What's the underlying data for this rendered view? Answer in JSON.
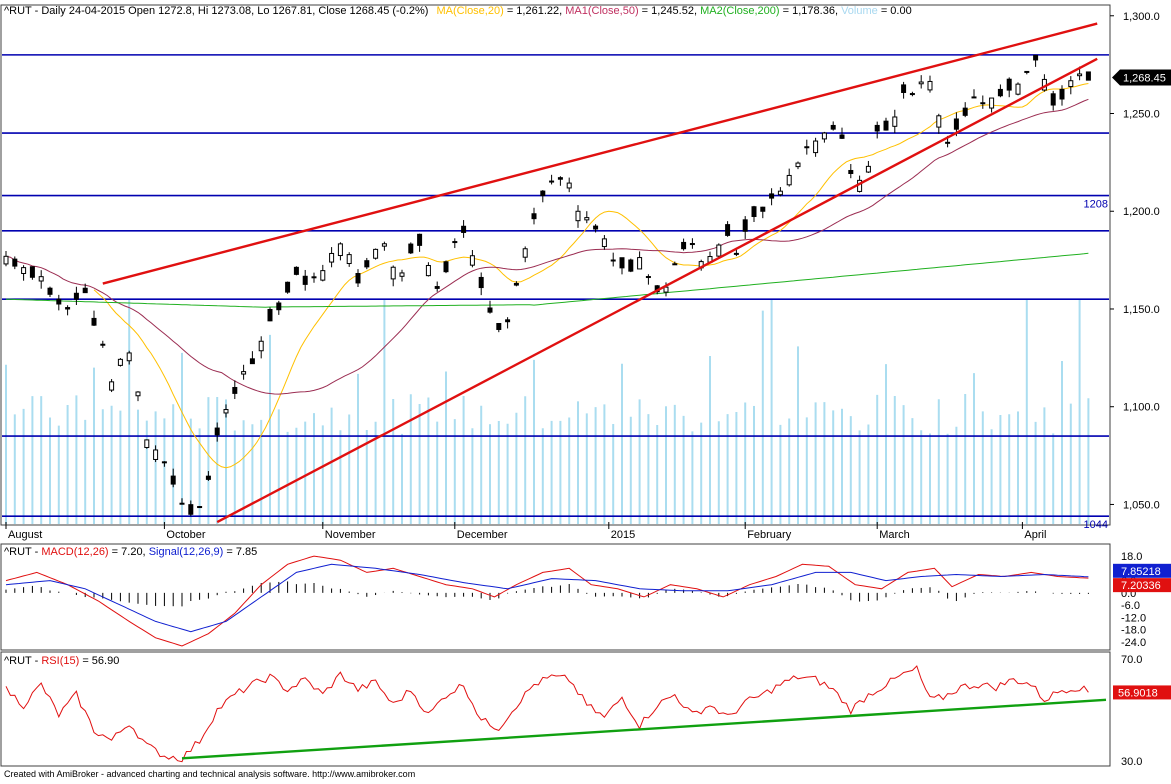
{
  "header": {
    "symbol": "^RUT - Daily 24-04-2015 Open 1272.8, Hi 1273.08, Lo 1267.81, Close 1268.45 (-0.2%)",
    "ma_label": "MA(Close,20)",
    "ma_value": " = 1,261.22, ",
    "ma1_label": "MA1(Close,50)",
    "ma1_value": " = 1,245.52, ",
    "ma2_label": "MA2(Close,200)",
    "ma2_value": " = 1,178.36, ",
    "volume_label": "Volume",
    "volume_value": " = 0.00"
  },
  "macd_header": {
    "prefix": "^RUT - ",
    "macd_label": "MACD(12,26)",
    "macd_value": " = 7.20, ",
    "signal_label": "Signal(12,26,9)",
    "signal_value": " = 7.85"
  },
  "rsi_header": {
    "prefix": "^RUT - ",
    "rsi_label": "RSI(15)",
    "rsi_value": " = 56.90"
  },
  "footer": "Created with AmiBroker - advanced charting and technical analysis software. http://www.amibroker.com",
  "colors": {
    "up": "#ffffff",
    "down": "#000000",
    "ma20": "#ffc000",
    "ma50": "#9b2d52",
    "ma200": "#20b020",
    "volume": "#aaddf0",
    "hline": "#0000b0",
    "trend": "#e01010",
    "macd": "#e01010",
    "signal": "#1020d0",
    "rsi": "#e01010",
    "rsi_trend": "#10a010"
  },
  "chart_data": [
    {
      "type": "candlestick",
      "panel": "price",
      "title": "^RUT - Daily 24-04-2015",
      "x_labels": [
        "August",
        "October",
        "November",
        "December",
        "2015",
        "February",
        "March",
        "April"
      ],
      "ylim": [
        1040,
        1305
      ],
      "y_ticks": [
        "1,300.0",
        "1,250.0",
        "1,200.0",
        "1,150.0",
        "1,100.0",
        "1,050.0"
      ],
      "y_tick_values": [
        1300,
        1250,
        1200,
        1150,
        1100,
        1050
      ],
      "last_close_label": "1,268.45",
      "last_close": 1268.45,
      "horizontal_levels": [
        1280,
        1240,
        1208,
        1190,
        1155,
        1085,
        1044
      ],
      "level_labels": [
        {
          "value": 1208,
          "text": "1208"
        },
        {
          "value": 1044,
          "text": "1044"
        }
      ],
      "path": [
        [
          0,
          1177
        ],
        [
          8,
          1166
        ],
        [
          13,
          1148
        ],
        [
          18,
          1158
        ],
        [
          24,
          1115
        ],
        [
          28,
          1128
        ],
        [
          32,
          1085
        ],
        [
          37,
          1068
        ],
        [
          41,
          1046
        ],
        [
          45,
          1052
        ],
        [
          48,
          1085
        ],
        [
          53,
          1115
        ],
        [
          57,
          1128
        ],
        [
          62,
          1150
        ],
        [
          66,
          1168
        ],
        [
          69,
          1162
        ],
        [
          73,
          1174
        ],
        [
          77,
          1183
        ],
        [
          80,
          1163
        ],
        [
          85,
          1187
        ],
        [
          89,
          1168
        ],
        [
          94,
          1185
        ],
        [
          98,
          1160
        ],
        [
          101,
          1177
        ],
        [
          104,
          1192
        ],
        [
          108,
          1160
        ],
        [
          111,
          1145
        ],
        [
          113,
          1138
        ],
        [
          117,
          1170
        ],
        [
          121,
          1205
        ],
        [
          124,
          1218
        ],
        [
          127,
          1218
        ],
        [
          130,
          1202
        ],
        [
          133,
          1193
        ],
        [
          135,
          1190
        ],
        [
          138,
          1178
        ],
        [
          141,
          1168
        ],
        [
          144,
          1175
        ],
        [
          146,
          1168
        ],
        [
          149,
          1158
        ],
        [
          152,
          1175
        ],
        [
          155,
          1188
        ],
        [
          158,
          1174
        ],
        [
          161,
          1178
        ],
        [
          163,
          1192
        ],
        [
          166,
          1176
        ],
        [
          168,
          1190
        ],
        [
          172,
          1200
        ],
        [
          176,
          1210
        ],
        [
          180,
          1225
        ],
        [
          184,
          1235
        ],
        [
          188,
          1242
        ],
        [
          190,
          1235
        ],
        [
          192,
          1222
        ],
        [
          195,
          1213
        ],
        [
          198,
          1240
        ],
        [
          201,
          1245
        ],
        [
          204,
          1258
        ],
        [
          208,
          1268
        ],
        [
          211,
          1268
        ],
        [
          213,
          1232
        ],
        [
          216,
          1240
        ],
        [
          219,
          1255
        ],
        [
          222,
          1258
        ],
        [
          225,
          1258
        ],
        [
          228,
          1263
        ],
        [
          231,
          1270
        ],
        [
          234,
          1275
        ],
        [
          236,
          1268
        ],
        [
          238,
          1255
        ],
        [
          241,
          1262
        ],
        [
          244,
          1270
        ],
        [
          246,
          1268
        ]
      ],
      "volume_ylim": [
        0,
        2000
      ]
    },
    {
      "type": "line",
      "panel": "macd",
      "title": "MACD(12,26)",
      "ylim": [
        -27,
        20
      ],
      "y_ticks": [
        "18.0",
        "12.0",
        "6.0",
        "0.0",
        "-6.0",
        "-12.0",
        "-18.0",
        "-24.0"
      ],
      "y_tick_values": [
        18,
        12,
        6,
        0,
        -6,
        -12,
        -18,
        -24
      ],
      "value_labels": [
        {
          "value": 7.85218,
          "text": "7.85218",
          "series": "signal"
        },
        {
          "value": 7.20336,
          "text": "7.20336",
          "series": "macd"
        }
      ],
      "macd_path": [
        [
          0,
          6
        ],
        [
          7,
          10
        ],
        [
          14,
          4
        ],
        [
          21,
          -4
        ],
        [
          28,
          -14
        ],
        [
          34,
          -22
        ],
        [
          40,
          -26
        ],
        [
          46,
          -20
        ],
        [
          52,
          -10
        ],
        [
          58,
          4
        ],
        [
          64,
          14
        ],
        [
          70,
          18
        ],
        [
          76,
          16
        ],
        [
          82,
          10
        ],
        [
          88,
          12
        ],
        [
          94,
          8
        ],
        [
          100,
          4
        ],
        [
          106,
          2
        ],
        [
          111,
          -2
        ],
        [
          116,
          4
        ],
        [
          122,
          10
        ],
        [
          128,
          12
        ],
        [
          133,
          4
        ],
        [
          139,
          2
        ],
        [
          145,
          -2
        ],
        [
          151,
          4
        ],
        [
          157,
          2
        ],
        [
          163,
          -2
        ],
        [
          169,
          4
        ],
        [
          175,
          8
        ],
        [
          181,
          14
        ],
        [
          187,
          13
        ],
        [
          193,
          4
        ],
        [
          199,
          2
        ],
        [
          205,
          10
        ],
        [
          211,
          12
        ],
        [
          215,
          3
        ],
        [
          221,
          9
        ],
        [
          227,
          8
        ],
        [
          233,
          10
        ],
        [
          239,
          8
        ],
        [
          246,
          7.2
        ]
      ],
      "signal_path": [
        [
          0,
          4
        ],
        [
          10,
          6
        ],
        [
          18,
          2
        ],
        [
          26,
          -6
        ],
        [
          34,
          -14
        ],
        [
          42,
          -19
        ],
        [
          50,
          -14
        ],
        [
          58,
          -2
        ],
        [
          66,
          10
        ],
        [
          74,
          14
        ],
        [
          84,
          12
        ],
        [
          94,
          9
        ],
        [
          104,
          5
        ],
        [
          114,
          2
        ],
        [
          124,
          7
        ],
        [
          134,
          6
        ],
        [
          144,
          2
        ],
        [
          154,
          1
        ],
        [
          164,
          1
        ],
        [
          174,
          4
        ],
        [
          184,
          10
        ],
        [
          192,
          10
        ],
        [
          200,
          6
        ],
        [
          208,
          8
        ],
        [
          216,
          9
        ],
        [
          226,
          8
        ],
        [
          236,
          9
        ],
        [
          246,
          7.85
        ]
      ]
    },
    {
      "type": "line",
      "panel": "rsi",
      "title": "RSI(15)",
      "ylim": [
        28,
        72
      ],
      "y_ticks": [
        "70.0",
        "30.0"
      ],
      "y_tick_values": [
        70,
        30
      ],
      "value_labels": [
        {
          "value": 56.9018,
          "text": "56.9018",
          "series": "rsi"
        }
      ],
      "rsi_path": [
        [
          0,
          58
        ],
        [
          4,
          52
        ],
        [
          8,
          60
        ],
        [
          12,
          48
        ],
        [
          16,
          56
        ],
        [
          20,
          42
        ],
        [
          24,
          38
        ],
        [
          28,
          45
        ],
        [
          32,
          36
        ],
        [
          36,
          32
        ],
        [
          40,
          31
        ],
        [
          44,
          38
        ],
        [
          48,
          50
        ],
        [
          52,
          56
        ],
        [
          56,
          60
        ],
        [
          60,
          63
        ],
        [
          64,
          58
        ],
        [
          68,
          62
        ],
        [
          72,
          56
        ],
        [
          76,
          64
        ],
        [
          80,
          58
        ],
        [
          84,
          61
        ],
        [
          88,
          52
        ],
        [
          92,
          58
        ],
        [
          96,
          48
        ],
        [
          100,
          56
        ],
        [
          104,
          60
        ],
        [
          108,
          46
        ],
        [
          112,
          43
        ],
        [
          116,
          52
        ],
        [
          120,
          60
        ],
        [
          124,
          63
        ],
        [
          128,
          62
        ],
        [
          132,
          52
        ],
        [
          136,
          47
        ],
        [
          140,
          55
        ],
        [
          144,
          44
        ],
        [
          148,
          52
        ],
        [
          152,
          56
        ],
        [
          156,
          48
        ],
        [
          160,
          52
        ],
        [
          164,
          47
        ],
        [
          168,
          53
        ],
        [
          172,
          56
        ],
        [
          176,
          60
        ],
        [
          180,
          63
        ],
        [
          184,
          62
        ],
        [
          188,
          58
        ],
        [
          192,
          50
        ],
        [
          196,
          56
        ],
        [
          200,
          60
        ],
        [
          204,
          64
        ],
        [
          207,
          66
        ],
        [
          210,
          54
        ],
        [
          213,
          55
        ],
        [
          217,
          59
        ],
        [
          221,
          60
        ],
        [
          225,
          59
        ],
        [
          229,
          62
        ],
        [
          233,
          60
        ],
        [
          236,
          54
        ],
        [
          240,
          58
        ],
        [
          244,
          59
        ],
        [
          246,
          56.9
        ]
      ],
      "support_line": [
        [
          40,
          31
        ],
        [
          250,
          54
        ]
      ]
    }
  ]
}
